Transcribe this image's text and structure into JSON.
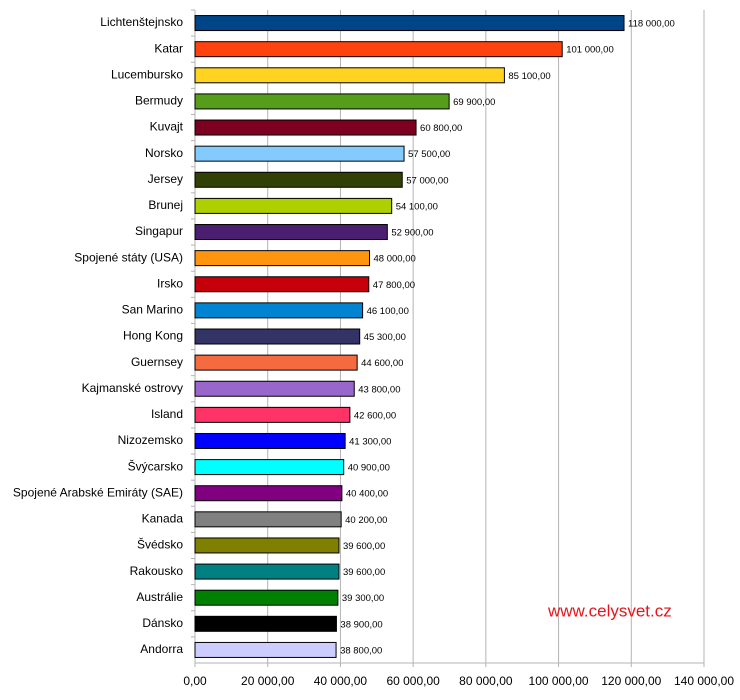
{
  "chart_data": {
    "type": "bar",
    "orientation": "horizontal",
    "categories": [
      "Lichtenštejnsko",
      "Katar",
      "Lucembursko",
      "Bermudy",
      "Kuvajt",
      "Norsko",
      "Jersey",
      "Brunej",
      "Singapur",
      "Spojené státy (USA)",
      "Irsko",
      "San Marino",
      "Hong Kong",
      "Guernsey",
      "Kajmanské ostrovy",
      "Island",
      "Nizozemsko",
      "Švýcarsko",
      "Spojené Arabské Emiráty (SAE)",
      "Kanada",
      "Švédsko",
      "Rakousko",
      "Austrálie",
      "Dánsko",
      "Andorra"
    ],
    "values": [
      118000,
      101000,
      85100,
      69900,
      60800,
      57500,
      57000,
      54100,
      52900,
      48000,
      47800,
      46100,
      45300,
      44600,
      43800,
      42600,
      41300,
      40900,
      40400,
      40200,
      39600,
      39600,
      39300,
      38900,
      38800
    ],
    "value_labels": [
      "118 000,00",
      "101 000,00",
      "85 100,00",
      "69 900,00",
      "60 800,00",
      "57 500,00",
      "57 000,00",
      "54 100,00",
      "52 900,00",
      "48 000,00",
      "47 800,00",
      "46 100,00",
      "45 300,00",
      "44 600,00",
      "43 800,00",
      "42 600,00",
      "41 300,00",
      "40 900,00",
      "40 400,00",
      "40 200,00",
      "39 600,00",
      "39 600,00",
      "39 300,00",
      "38 900,00",
      "38 800,00"
    ],
    "colors": [
      "#004586",
      "#ff420e",
      "#ffd320",
      "#579d1c",
      "#7e0021",
      "#83caff",
      "#314004",
      "#aecf00",
      "#4b1f6f",
      "#ff950e",
      "#c5000b",
      "#0084d1",
      "#333366",
      "#f56a3f",
      "#9966cc",
      "#ff3366",
      "#0000ff",
      "#00ffff",
      "#800080",
      "#808080",
      "#808000",
      "#008080",
      "#008000",
      "#000000",
      "#ccccff"
    ],
    "xlim": [
      0,
      140000
    ],
    "xticks": [
      {
        "value": 0,
        "label": "0,00"
      },
      {
        "value": 20000,
        "label": "20 000,00"
      },
      {
        "value": 40000,
        "label": "40 000,00"
      },
      {
        "value": 60000,
        "label": "60 000,00"
      },
      {
        "value": 80000,
        "label": "80 000,00"
      },
      {
        "value": 100000,
        "label": "100 000,00"
      },
      {
        "value": 120000,
        "label": "120 000,00"
      },
      {
        "value": 140000,
        "label": "140 000,00"
      }
    ],
    "grid": true,
    "watermark": "www.celysvet.cz"
  }
}
